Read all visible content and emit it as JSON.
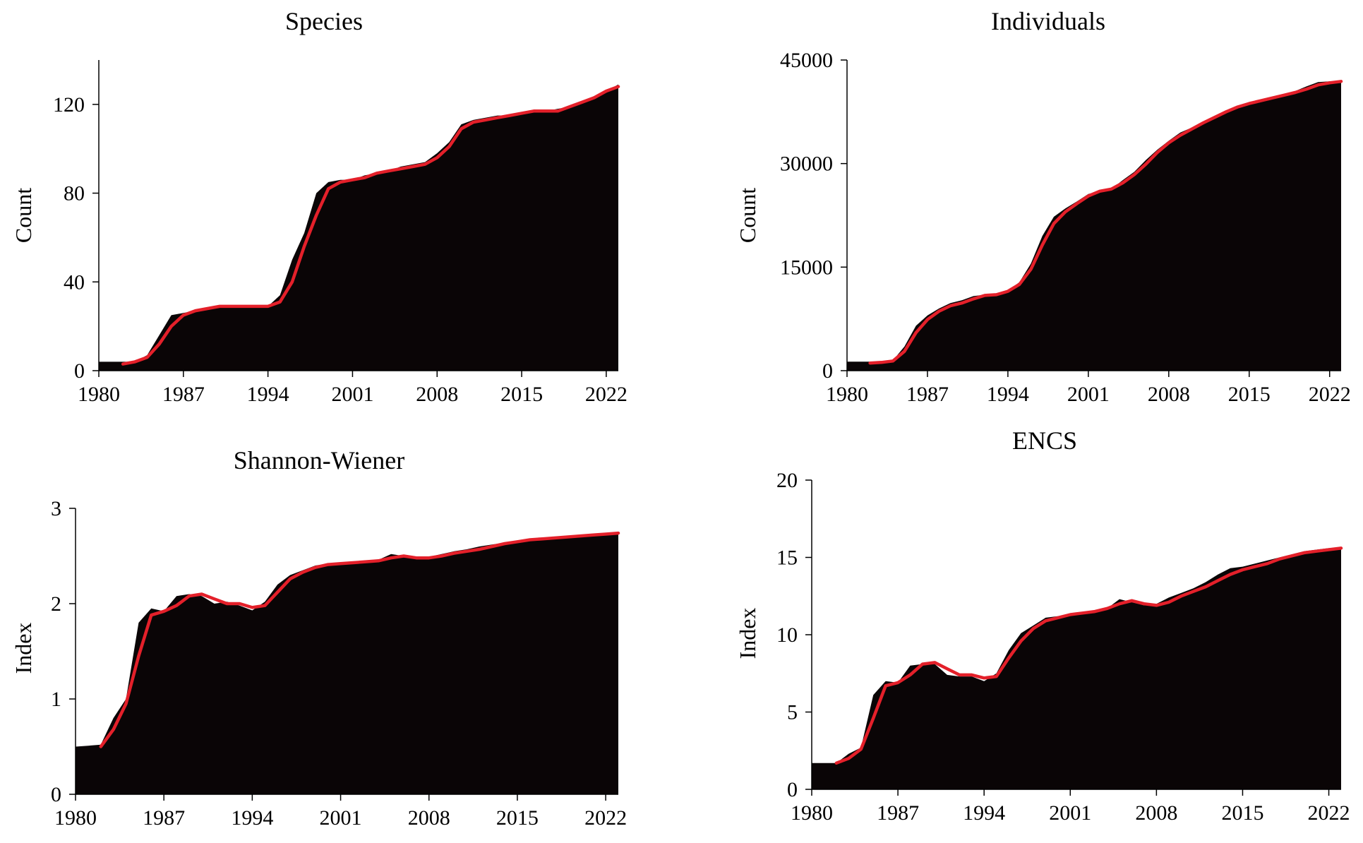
{
  "colors": {
    "area": "#0a0506",
    "trend_line": "#e4202a",
    "axis": "#000000",
    "background": "#ffffff"
  },
  "chart_data": [
    {
      "type": "area",
      "title": "Species",
      "xlabel": "",
      "ylabel": "Count",
      "xlim": [
        1980,
        2023
      ],
      "ylim": [
        0,
        140
      ],
      "xticks": [
        1980,
        1987,
        1994,
        2001,
        2008,
        2015,
        2022
      ],
      "yticks": [
        0,
        40,
        80,
        120
      ],
      "x": [
        1980,
        1981,
        1982,
        1983,
        1984,
        1985,
        1986,
        1987,
        1988,
        1989,
        1990,
        1991,
        1992,
        1993,
        1994,
        1995,
        1996,
        1997,
        1998,
        1999,
        2000,
        2001,
        2002,
        2003,
        2004,
        2005,
        2006,
        2007,
        2008,
        2009,
        2010,
        2011,
        2012,
        2013,
        2014,
        2015,
        2016,
        2017,
        2018,
        2019,
        2020,
        2021,
        2022,
        2023
      ],
      "area": [
        4,
        4,
        4,
        4,
        7,
        16,
        25,
        26,
        27,
        28,
        29,
        29,
        29,
        29,
        29,
        34,
        50,
        62,
        80,
        85,
        86,
        86,
        88,
        89,
        90,
        92,
        93,
        94,
        98,
        103,
        111,
        113,
        114,
        115,
        115,
        116,
        117,
        117,
        118,
        119,
        121,
        123,
        126,
        129
      ],
      "line_x": [
        1982,
        1983,
        1984,
        1985,
        1986,
        1987,
        1988,
        1989,
        1990,
        1991,
        1992,
        1993,
        1994,
        1995,
        1996,
        1997,
        1998,
        1999,
        2000,
        2001,
        2002,
        2003,
        2004,
        2005,
        2006,
        2007,
        2008,
        2009,
        2010,
        2011,
        2012,
        2013,
        2014,
        2015,
        2016,
        2017,
        2018,
        2019,
        2020,
        2021,
        2022,
        2023
      ],
      "line": [
        3,
        4,
        6,
        12,
        20,
        25,
        27,
        28,
        29,
        29,
        29,
        29,
        29,
        31,
        40,
        56,
        70,
        82,
        85,
        86,
        87,
        89,
        90,
        91,
        92,
        93,
        96,
        101,
        109,
        112,
        113,
        114,
        115,
        116,
        117,
        117,
        117,
        119,
        121,
        123,
        126,
        128
      ]
    },
    {
      "type": "area",
      "title": "Individuals",
      "xlabel": "",
      "ylabel": "Count",
      "xlim": [
        1980,
        2023
      ],
      "ylim": [
        0,
        45000
      ],
      "xticks": [
        1980,
        1987,
        1994,
        2001,
        2008,
        2015,
        2022
      ],
      "yticks": [
        0,
        15000,
        30000,
        45000
      ],
      "x": [
        1980,
        1981,
        1982,
        1983,
        1984,
        1985,
        1986,
        1987,
        1988,
        1989,
        1990,
        1991,
        1992,
        1993,
        1994,
        1995,
        1996,
        1997,
        1998,
        1999,
        2000,
        2001,
        2002,
        2003,
        2004,
        2005,
        2006,
        2007,
        2008,
        2009,
        2010,
        2011,
        2012,
        2013,
        2014,
        2015,
        2016,
        2017,
        2018,
        2019,
        2020,
        2021,
        2022,
        2023
      ],
      "area": [
        1300,
        1300,
        1300,
        1300,
        1500,
        3500,
        6500,
        8000,
        9000,
        9800,
        10200,
        10800,
        11000,
        11000,
        11600,
        12800,
        15500,
        19500,
        22300,
        23500,
        24500,
        25600,
        26000,
        26300,
        27600,
        28800,
        30500,
        32000,
        33300,
        34500,
        35200,
        36000,
        36900,
        37600,
        38300,
        38800,
        39200,
        39600,
        40000,
        40500,
        41200,
        41800,
        41900,
        42000
      ],
      "line_x": [
        1982,
        1983,
        1984,
        1985,
        1986,
        1987,
        1988,
        1989,
        1990,
        1991,
        1992,
        1993,
        1994,
        1995,
        1996,
        1997,
        1998,
        1999,
        2000,
        2001,
        2002,
        2003,
        2004,
        2005,
        2006,
        2007,
        2008,
        2009,
        2010,
        2011,
        2012,
        2013,
        2014,
        2015,
        2016,
        2017,
        2018,
        2019,
        2020,
        2021,
        2022,
        2023
      ],
      "line": [
        1100,
        1200,
        1400,
        2800,
        5500,
        7400,
        8600,
        9400,
        9800,
        10400,
        10900,
        11000,
        11500,
        12500,
        14700,
        18200,
        21300,
        23000,
        24200,
        25300,
        26000,
        26300,
        27200,
        28400,
        29900,
        31600,
        33000,
        34100,
        35000,
        35900,
        36700,
        37500,
        38200,
        38700,
        39100,
        39500,
        39900,
        40300,
        40800,
        41400,
        41700,
        41900
      ]
    },
    {
      "type": "area",
      "title": "Shannon-Wiener",
      "xlabel": "",
      "ylabel": "Index",
      "xlim": [
        1980,
        2023
      ],
      "ylim": [
        0,
        3
      ],
      "xticks": [
        1980,
        1987,
        1994,
        2001,
        2008,
        2015,
        2022
      ],
      "yticks": [
        0,
        1,
        2,
        3
      ],
      "x": [
        1980,
        1981,
        1982,
        1983,
        1984,
        1985,
        1986,
        1987,
        1988,
        1989,
        1990,
        1991,
        1992,
        1993,
        1994,
        1995,
        1996,
        1997,
        1998,
        1999,
        2000,
        2001,
        2002,
        2003,
        2004,
        2005,
        2006,
        2007,
        2008,
        2009,
        2010,
        2011,
        2012,
        2013,
        2014,
        2015,
        2016,
        2017,
        2018,
        2019,
        2020,
        2021,
        2022,
        2023
      ],
      "area": [
        0.5,
        0.51,
        0.52,
        0.8,
        1.0,
        1.8,
        1.95,
        1.92,
        2.08,
        2.1,
        2.08,
        2.0,
        2.02,
        1.98,
        1.93,
        2.02,
        2.2,
        2.3,
        2.35,
        2.4,
        2.42,
        2.43,
        2.43,
        2.44,
        2.46,
        2.52,
        2.5,
        2.48,
        2.49,
        2.52,
        2.55,
        2.57,
        2.6,
        2.62,
        2.64,
        2.66,
        2.68,
        2.69,
        2.7,
        2.71,
        2.72,
        2.73,
        2.74,
        2.74
      ],
      "line_x": [
        1982,
        1983,
        1984,
        1985,
        1986,
        1987,
        1988,
        1989,
        1990,
        1991,
        1992,
        1993,
        1994,
        1995,
        1996,
        1997,
        1998,
        1999,
        2000,
        2001,
        2002,
        2003,
        2004,
        2005,
        2006,
        2007,
        2008,
        2009,
        2010,
        2011,
        2012,
        2013,
        2014,
        2015,
        2016,
        2017,
        2018,
        2019,
        2020,
        2021,
        2022,
        2023
      ],
      "line": [
        0.5,
        0.68,
        0.95,
        1.45,
        1.88,
        1.92,
        1.98,
        2.08,
        2.1,
        2.05,
        2.0,
        2.0,
        1.96,
        1.98,
        2.12,
        2.26,
        2.33,
        2.38,
        2.41,
        2.42,
        2.43,
        2.44,
        2.45,
        2.48,
        2.5,
        2.48,
        2.48,
        2.5,
        2.53,
        2.55,
        2.57,
        2.6,
        2.63,
        2.65,
        2.67,
        2.68,
        2.69,
        2.7,
        2.71,
        2.72,
        2.73,
        2.74
      ]
    },
    {
      "type": "area",
      "title": "ENCS",
      "xlabel": "",
      "ylabel": "Index",
      "xlim": [
        1980,
        2023
      ],
      "ylim": [
        0,
        20
      ],
      "xticks": [
        1980,
        1987,
        1994,
        2001,
        2008,
        2015,
        2022
      ],
      "yticks": [
        0,
        5,
        10,
        15,
        20
      ],
      "x": [
        1980,
        1981,
        1982,
        1983,
        1984,
        1985,
        1986,
        1987,
        1988,
        1989,
        1990,
        1991,
        1992,
        1993,
        1994,
        1995,
        1996,
        1997,
        1998,
        1999,
        2000,
        2001,
        2002,
        2003,
        2004,
        2005,
        2006,
        2007,
        2008,
        2009,
        2010,
        2011,
        2012,
        2013,
        2014,
        2015,
        2016,
        2017,
        2018,
        2019,
        2020,
        2021,
        2022,
        2023
      ],
      "area": [
        1.7,
        1.7,
        1.7,
        2.3,
        2.7,
        6.1,
        7.0,
        6.9,
        8.0,
        8.1,
        8.1,
        7.4,
        7.3,
        7.3,
        7.0,
        7.5,
        9.0,
        10.1,
        10.6,
        11.1,
        11.2,
        11.3,
        11.4,
        11.5,
        11.7,
        12.3,
        12.1,
        11.9,
        12.0,
        12.4,
        12.7,
        13.0,
        13.4,
        13.9,
        14.3,
        14.4,
        14.6,
        14.8,
        15.0,
        15.2,
        15.4,
        15.5,
        15.6,
        15.6
      ],
      "line_x": [
        1982,
        1983,
        1984,
        1985,
        1986,
        1987,
        1988,
        1989,
        1990,
        1991,
        1992,
        1993,
        1994,
        1995,
        1996,
        1997,
        1998,
        1999,
        2000,
        2001,
        2002,
        2003,
        2004,
        2005,
        2006,
        2007,
        2008,
        2009,
        2010,
        2011,
        2012,
        2013,
        2014,
        2015,
        2016,
        2017,
        2018,
        2019,
        2020,
        2021,
        2022,
        2023
      ],
      "line": [
        1.7,
        2.0,
        2.6,
        4.6,
        6.7,
        6.9,
        7.4,
        8.1,
        8.2,
        7.8,
        7.4,
        7.4,
        7.2,
        7.3,
        8.5,
        9.6,
        10.4,
        10.9,
        11.1,
        11.3,
        11.4,
        11.5,
        11.7,
        12.0,
        12.2,
        12.0,
        11.9,
        12.1,
        12.5,
        12.8,
        13.1,
        13.5,
        13.9,
        14.2,
        14.4,
        14.6,
        14.9,
        15.1,
        15.3,
        15.4,
        15.5,
        15.6
      ]
    }
  ]
}
